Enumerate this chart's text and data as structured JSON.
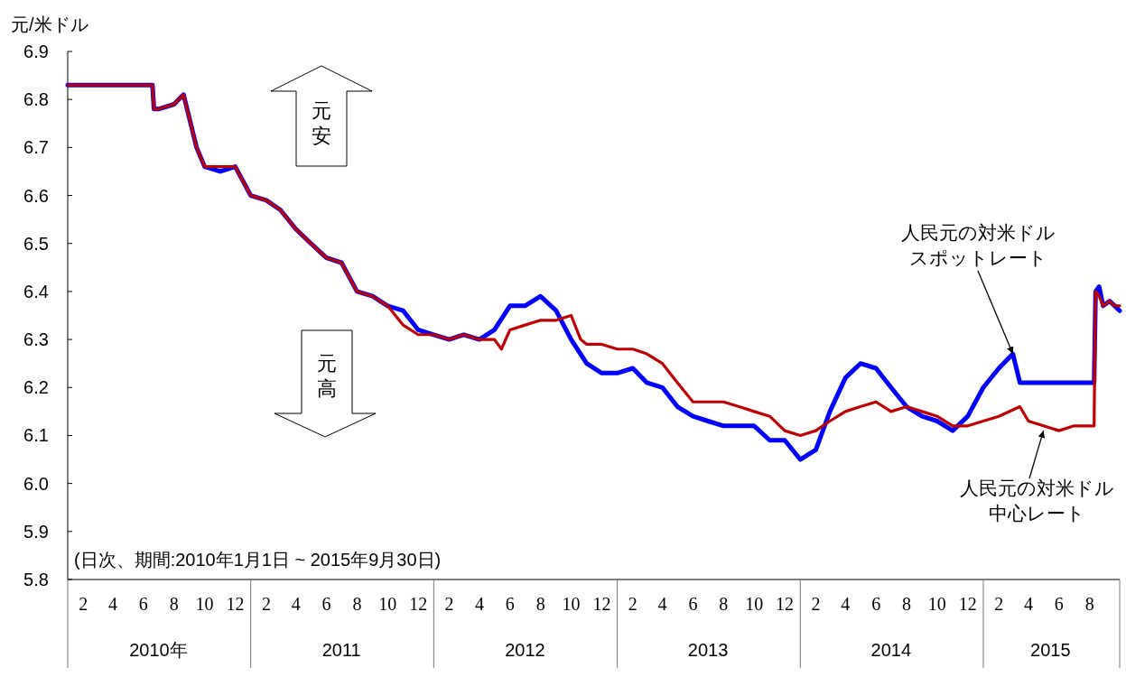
{
  "chart_data": {
    "type": "line",
    "ylabel": "元/米ドル",
    "xlim": [
      "2010-01-01",
      "2015-09-30"
    ],
    "ylim": [
      5.8,
      6.9
    ],
    "yticks": [
      5.8,
      5.9,
      {
        "value": 6,
        "label": "6.0"
      },
      6.1,
      6.2,
      6.3,
      6.4,
      6.5,
      6.6,
      6.7,
      6.8,
      6.9
    ],
    "xticks": [
      {
        "value": "2010-02",
        "label": "2"
      },
      {
        "value": "2010-04",
        "label": "4"
      },
      {
        "value": "2010-06",
        "label": "6"
      },
      {
        "value": "2010-08",
        "label": "8"
      },
      {
        "value": "2010-10",
        "label": "10"
      },
      {
        "value": "2010-12",
        "label": "12"
      },
      {
        "value": "2011-02",
        "label": "2"
      },
      {
        "value": "2011-04",
        "label": "4"
      },
      {
        "value": "2011-06",
        "label": "6"
      },
      {
        "value": "2011-08",
        "label": "8"
      },
      {
        "value": "2011-10",
        "label": "10"
      },
      {
        "value": "2011-12",
        "label": "12"
      },
      {
        "value": "2012-02",
        "label": "2"
      },
      {
        "value": "2012-04",
        "label": "4"
      },
      {
        "value": "2012-06",
        "label": "6"
      },
      {
        "value": "2012-08",
        "label": "8"
      },
      {
        "value": "2012-10",
        "label": "10"
      },
      {
        "value": "2012-12",
        "label": "12"
      },
      {
        "value": "2013-02",
        "label": "2"
      },
      {
        "value": "2013-04",
        "label": "4"
      },
      {
        "value": "2013-06",
        "label": "6"
      },
      {
        "value": "2013-08",
        "label": "8"
      },
      {
        "value": "2013-10",
        "label": "10"
      },
      {
        "value": "2013-12",
        "label": "12"
      },
      {
        "value": "2014-02",
        "label": "2"
      },
      {
        "value": "2014-04",
        "label": "4"
      },
      {
        "value": "2014-06",
        "label": "6"
      },
      {
        "value": "2014-08",
        "label": "8"
      },
      {
        "value": "2014-10",
        "label": "10"
      },
      {
        "value": "2014-12",
        "label": "12"
      },
      {
        "value": "2015-02",
        "label": "2"
      },
      {
        "value": "2015-04",
        "label": "4"
      },
      {
        "value": "2015-06",
        "label": "6"
      },
      {
        "value": "2015-08",
        "label": "8"
      }
    ],
    "x2ticks": [
      {
        "value": "2010-07",
        "label": "2010年"
      },
      {
        "value": "2011-07",
        "label": "2011"
      },
      {
        "value": "2012-07",
        "label": "2012"
      },
      {
        "value": "2013-07",
        "label": "2013"
      },
      {
        "value": "2014-07",
        "label": "2014"
      },
      {
        "value": "2015-05-15",
        "label": "2015"
      }
    ],
    "x2lim": [
      "2010-01-01",
      "2015-09-30"
    ],
    "grid": false,
    "line_style": "solid",
    "series": [
      {
        "color": "#0000ff",
        "x": [
          "2010-01-01",
          "2010-06-19",
          "2010-06-22",
          "2010-07",
          "2010-08",
          "2010-08-20",
          "2010-09-15",
          "2010-10",
          "2010-11",
          "2010-12",
          "2011-01",
          "2011-02",
          "2011-03",
          "2011-04",
          "2011-05",
          "2011-06",
          "2011-07",
          "2011-08",
          "2011-09",
          "2011-10",
          "2011-11",
          "2011-12",
          "2012-01",
          "2012-02",
          "2012-03",
          "2012-04",
          "2012-05",
          "2012-06",
          "2012-07",
          "2012-08",
          "2012-09",
          "2012-10",
          "2012-11",
          "2012-12",
          "2013-01",
          "2013-02",
          "2013-03",
          "2013-04",
          "2013-05",
          "2013-06",
          "2013-07",
          "2013-08",
          "2013-09",
          "2013-10",
          "2013-11",
          "2013-12",
          "2014-01",
          "2014-02",
          "2014-03",
          "2014-04",
          "2014-05",
          "2014-06",
          "2014-07",
          "2014-08",
          "2014-09",
          "2014-10",
          "2014-11",
          "2014-12",
          "2015-01",
          "2015-02",
          "2015-03-01",
          "2015-03-15",
          "2015-04",
          "2015-05",
          "2015-06",
          "2015-07",
          "2015-08-10",
          "2015-08-13",
          "2015-08-20",
          "2015-08-28",
          "2015-09-10",
          "2015-09-20",
          "2015-09-30"
        ],
        "values": [
          6.83,
          6.83,
          6.78,
          6.78,
          6.79,
          6.81,
          6.7,
          6.66,
          6.65,
          6.66,
          6.6,
          6.59,
          6.57,
          6.53,
          6.5,
          6.47,
          6.46,
          6.4,
          6.39,
          6.37,
          6.36,
          6.32,
          6.31,
          6.3,
          6.31,
          6.3,
          6.32,
          6.37,
          6.37,
          6.39,
          6.36,
          6.3,
          6.25,
          6.23,
          6.23,
          6.24,
          6.21,
          6.2,
          6.16,
          6.14,
          6.13,
          6.12,
          6.12,
          6.12,
          6.09,
          6.09,
          6.05,
          6.07,
          6.15,
          6.22,
          6.25,
          6.24,
          6.2,
          6.16,
          6.14,
          6.13,
          6.11,
          6.14,
          6.2,
          6.24,
          6.27,
          6.21,
          6.21,
          6.21,
          6.21,
          6.21,
          6.21,
          6.4,
          6.41,
          6.37,
          6.38,
          6.37,
          6.36
        ]
      },
      {
        "color": "#c00000",
        "x": [
          "2010-01-01",
          "2010-06-19",
          "2010-06-22",
          "2010-07",
          "2010-08",
          "2010-08-20",
          "2010-09-15",
          "2010-10",
          "2010-11",
          "2010-12",
          "2011-01",
          "2011-02",
          "2011-03",
          "2011-04",
          "2011-05",
          "2011-06",
          "2011-07",
          "2011-08",
          "2011-09",
          "2011-10",
          "2011-11",
          "2011-12",
          "2012-01",
          "2012-02",
          "2012-03",
          "2012-04",
          "2012-05",
          "2012-05-15",
          "2012-06",
          "2012-07",
          "2012-08",
          "2012-09",
          "2012-10",
          "2012-10-20",
          "2012-11",
          "2012-12",
          "2013-01",
          "2013-02",
          "2013-03",
          "2013-04",
          "2013-05",
          "2013-06",
          "2013-07",
          "2013-08",
          "2013-09",
          "2013-10",
          "2013-11",
          "2013-12",
          "2014-01",
          "2014-02",
          "2014-03",
          "2014-04",
          "2014-05",
          "2014-06",
          "2014-07",
          "2014-08",
          "2014-09",
          "2014-10",
          "2014-11",
          "2014-12",
          "2015-01",
          "2015-02",
          "2015-03-15",
          "2015-04",
          "2015-05",
          "2015-06",
          "2015-07",
          "2015-08-10",
          "2015-08-11",
          "2015-08-12",
          "2015-08-13",
          "2015-08-20",
          "2015-08-28",
          "2015-09-10",
          "2015-09-20",
          "2015-09-30"
        ],
        "values": [
          6.83,
          6.83,
          6.78,
          6.78,
          6.79,
          6.81,
          6.7,
          6.66,
          6.66,
          6.66,
          6.6,
          6.59,
          6.57,
          6.53,
          6.5,
          6.47,
          6.46,
          6.4,
          6.39,
          6.37,
          6.33,
          6.31,
          6.31,
          6.3,
          6.31,
          6.3,
          6.3,
          6.28,
          6.32,
          6.33,
          6.34,
          6.34,
          6.35,
          6.3,
          6.29,
          6.29,
          6.28,
          6.28,
          6.27,
          6.25,
          6.21,
          6.17,
          6.17,
          6.17,
          6.16,
          6.15,
          6.14,
          6.11,
          6.1,
          6.11,
          6.13,
          6.15,
          6.16,
          6.17,
          6.15,
          6.16,
          6.15,
          6.14,
          6.12,
          6.12,
          6.13,
          6.14,
          6.16,
          6.13,
          6.12,
          6.11,
          6.12,
          6.12,
          6.23,
          6.33,
          6.4,
          6.39,
          6.37,
          6.38,
          6.37,
          6.37
        ]
      }
    ],
    "annotations": [
      {
        "text": "人民元の対米ドルスポットレート",
        "x": "2015-03-01",
        "y": 6.27
      },
      {
        "text": "人民元の対米ドル中心レート",
        "x": "2015-05",
        "y": 6.11
      },
      "元安",
      "元高",
      "(日次、期間:2010年1月1日 ~ 2015年9月30日)"
    ]
  }
}
